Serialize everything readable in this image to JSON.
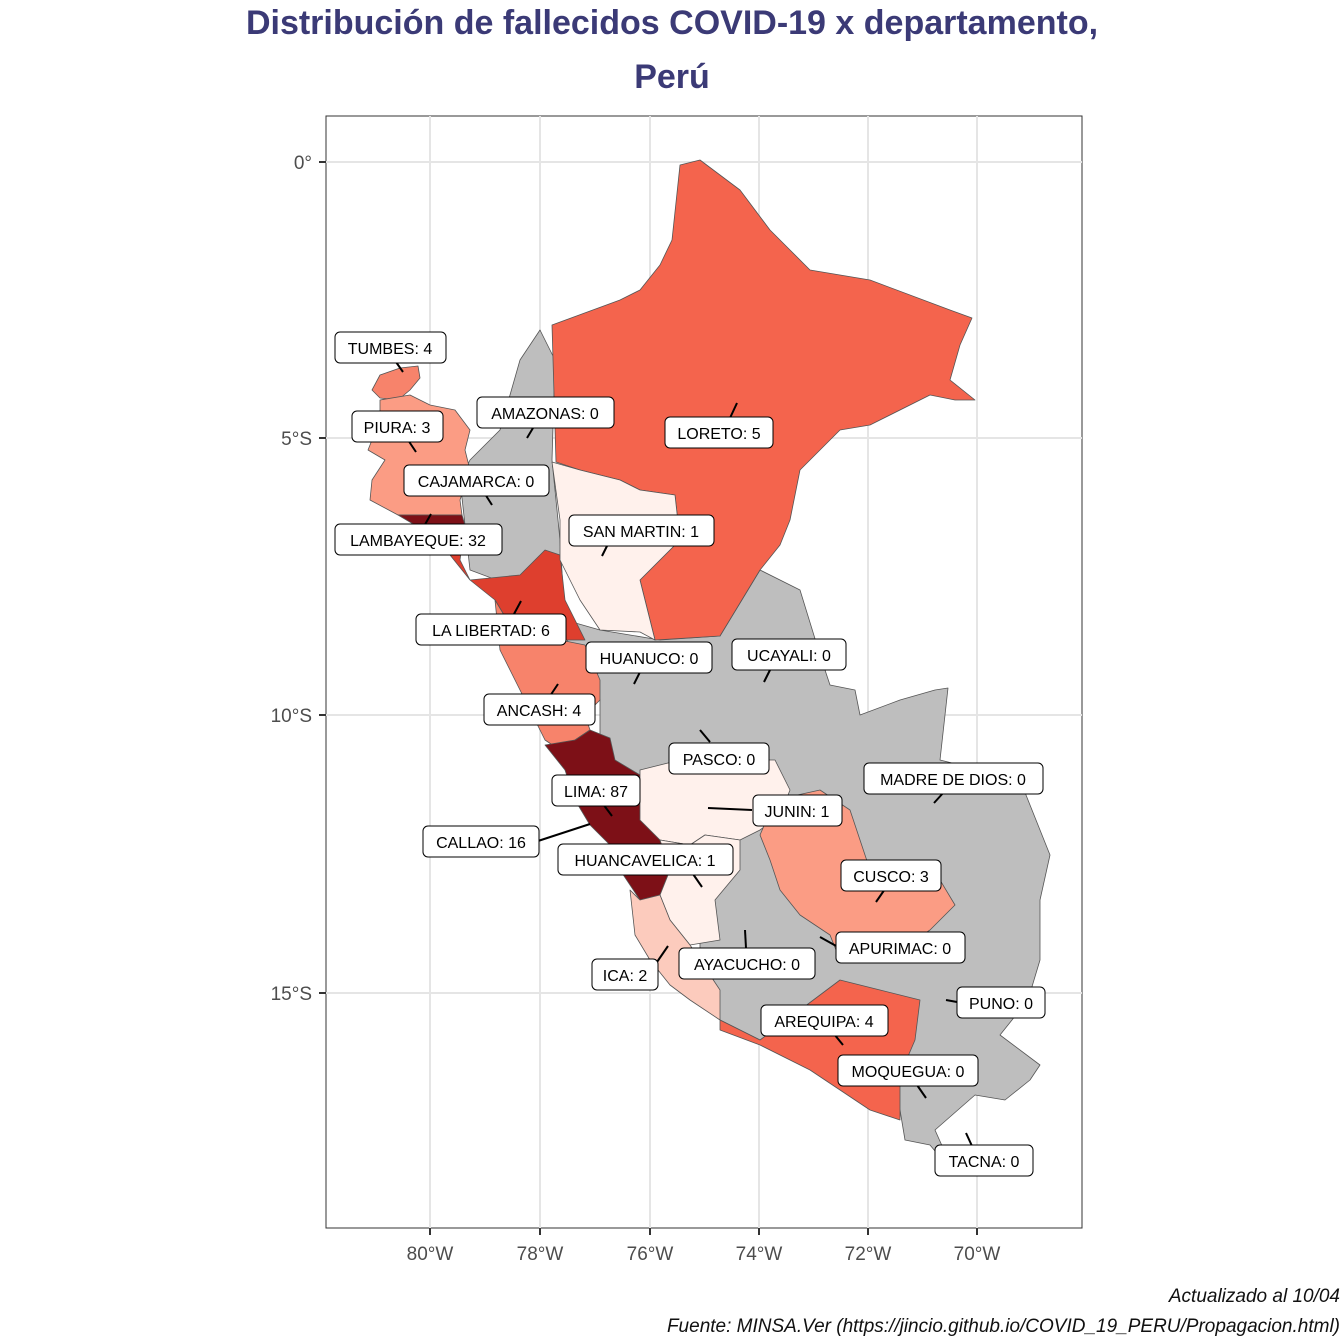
{
  "title_line1": "Distribución  de fallecidos COVID-19 x departamento,",
  "title_line2": "Perú",
  "caption_line1": "Actualizado al 10/04",
  "caption_line2": "Fuente: MINSA.Ver (https://jincio.github.io/COVID_19_PERU/Propagacion.html)",
  "colors": {
    "title": "#3b3a76",
    "zero": "#bebebe",
    "scale": [
      "#fff1ec",
      "#fccbbd",
      "#fb9c84",
      "#f7836b",
      "#f4644d",
      "#de3f2e",
      "#7d1017"
    ]
  },
  "axes": {
    "x_ticks": [
      "80°W",
      "78°W",
      "76°W",
      "74°W",
      "72°W",
      "70°W"
    ],
    "y_ticks": [
      "0°",
      "5°S",
      "10°S",
      "15°S"
    ]
  },
  "departments": [
    {
      "name": "TUMBES",
      "value": 4,
      "label": "TUMBES: 4"
    },
    {
      "name": "PIURA",
      "value": 3,
      "label": "PIURA: 3"
    },
    {
      "name": "AMAZONAS",
      "value": 0,
      "label": "AMAZONAS: 0"
    },
    {
      "name": "LORETO",
      "value": 5,
      "label": "LORETO: 5"
    },
    {
      "name": "CAJAMARCA",
      "value": 0,
      "label": "CAJAMARCA: 0"
    },
    {
      "name": "LAMBAYEQUE",
      "value": 32,
      "label": "LAMBAYEQUE: 32"
    },
    {
      "name": "SAN MARTIN",
      "value": 1,
      "label": "SAN MARTIN: 1"
    },
    {
      "name": "LA LIBERTAD",
      "value": 6,
      "label": "LA LIBERTAD: 6"
    },
    {
      "name": "HUANUCO",
      "value": 0,
      "label": "HUANUCO: 0"
    },
    {
      "name": "UCAYALI",
      "value": 0,
      "label": "UCAYALI: 0"
    },
    {
      "name": "ANCASH",
      "value": 4,
      "label": "ANCASH: 4"
    },
    {
      "name": "PASCO",
      "value": 0,
      "label": "PASCO: 0"
    },
    {
      "name": "MADRE DE DIOS",
      "value": 0,
      "label": "MADRE DE DIOS: 0"
    },
    {
      "name": "LIMA",
      "value": 87,
      "label": "LIMA: 87"
    },
    {
      "name": "JUNIN",
      "value": 1,
      "label": "JUNIN: 1"
    },
    {
      "name": "CALLAO",
      "value": 16,
      "label": "CALLAO: 16"
    },
    {
      "name": "HUANCAVELICA",
      "value": 1,
      "label": "HUANCAVELICA: 1"
    },
    {
      "name": "CUSCO",
      "value": 3,
      "label": "CUSCO: 3"
    },
    {
      "name": "APURIMAC",
      "value": 0,
      "label": "APURIMAC: 0"
    },
    {
      "name": "AYACUCHO",
      "value": 0,
      "label": "AYACUCHO: 0"
    },
    {
      "name": "ICA",
      "value": 2,
      "label": "ICA: 2"
    },
    {
      "name": "PUNO",
      "value": 0,
      "label": "PUNO: 0"
    },
    {
      "name": "AREQUIPA",
      "value": 4,
      "label": "AREQUIPA: 4"
    },
    {
      "name": "MOQUEGUA",
      "value": 0,
      "label": "MOQUEGUA: 0"
    },
    {
      "name": "TACNA",
      "value": 0,
      "label": "TACNA: 0"
    }
  ]
}
